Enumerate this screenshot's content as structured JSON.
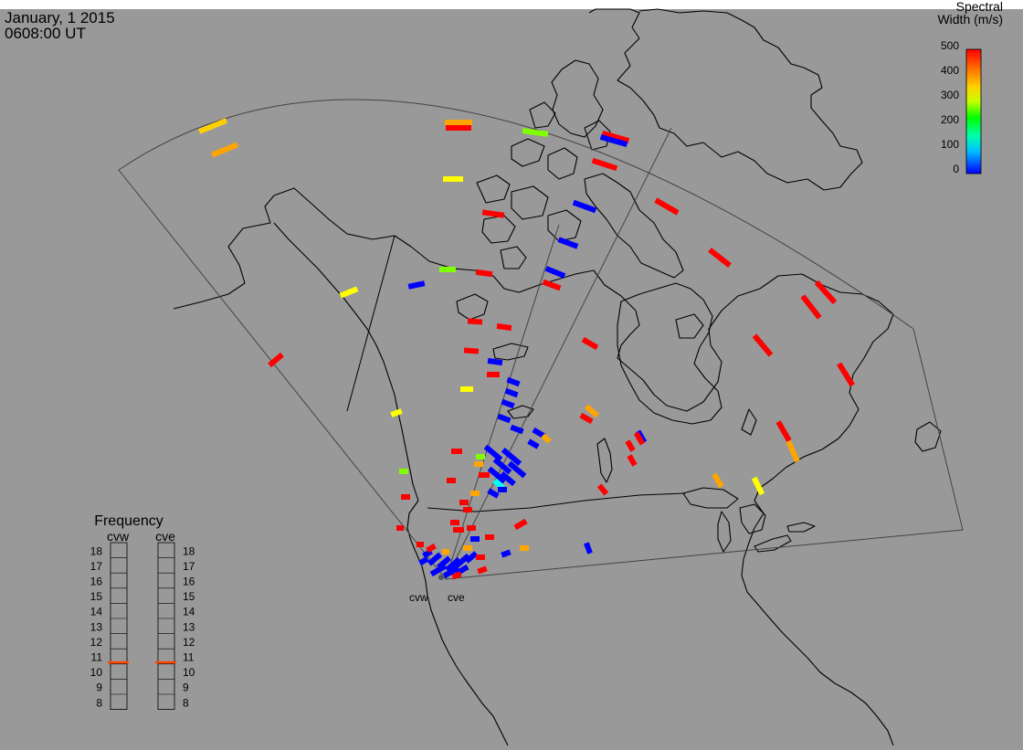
{
  "header": {
    "date": "January, 1 2015",
    "time": "0608:00 UT"
  },
  "colorbar": {
    "title_line1": "Spectral",
    "title_line2": "Width (m/s)",
    "ticks": [
      "500",
      "400",
      "300",
      "200",
      "100",
      "0"
    ],
    "min": 0,
    "max": 500,
    "colors": [
      "#ff0000",
      "#ff6a00",
      "#ffa500",
      "#ffff00",
      "#aaff00",
      "#00ff00",
      "#00ffc8",
      "#00ffff",
      "#00aaff",
      "#0000ff"
    ]
  },
  "frequency_panel": {
    "title": "Frequency",
    "left_radar": "cvw",
    "right_radar": "cve",
    "scale_values": [
      "18",
      "17",
      "16",
      "15",
      "14",
      "13",
      "12",
      "11",
      "10",
      "9",
      "8"
    ],
    "scale_min": 8,
    "scale_max": 18,
    "marker_value": 10.6,
    "marker_color": "#ff4500"
  },
  "radar_sites": {
    "west": "cvw",
    "east": "cve"
  },
  "colors": {
    "background": "#999999",
    "coastline": "#000000",
    "fov_outline": "#444444"
  }
}
